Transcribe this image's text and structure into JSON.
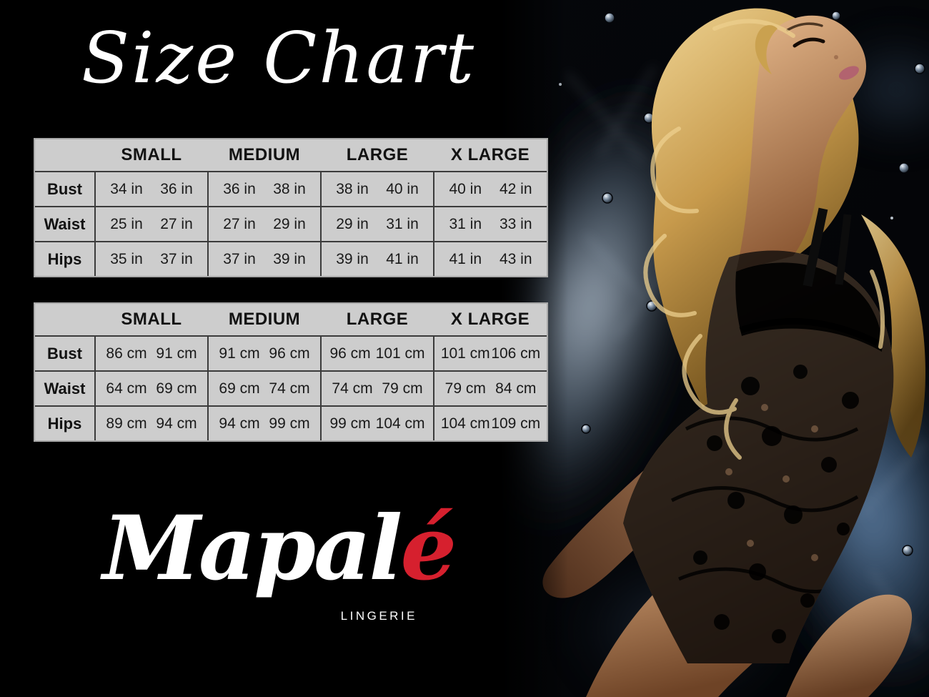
{
  "page": {
    "title": "Size Chart"
  },
  "brand": {
    "script_white": "Mapal",
    "script_accent": "é",
    "tagline": "LINGERIE",
    "accent_color": "#d6202e"
  },
  "colors": {
    "background": "#000000",
    "table_bg": "#cdcdcd",
    "table_grid": "#3b3b3b",
    "table_frame": "#a9a9a9",
    "title_white": "#ffffff"
  },
  "tables": [
    {
      "unit": "inches",
      "columns": [
        "SMALL",
        "MEDIUM",
        "LARGE",
        "X LARGE"
      ],
      "rows": [
        {
          "label": "Bust",
          "ranges": [
            [
              "34 in",
              "36 in"
            ],
            [
              "36 in",
              "38 in"
            ],
            [
              "38 in",
              "40 in"
            ],
            [
              "40 in",
              "42 in"
            ]
          ]
        },
        {
          "label": "Waist",
          "ranges": [
            [
              "25 in",
              "27 in"
            ],
            [
              "27 in",
              "29 in"
            ],
            [
              "29 in",
              "31 in"
            ],
            [
              "31 in",
              "33 in"
            ]
          ]
        },
        {
          "label": "Hips",
          "ranges": [
            [
              "35 in",
              "37 in"
            ],
            [
              "37 in",
              "39 in"
            ],
            [
              "39 in",
              "41 in"
            ],
            [
              "41 in",
              "43 in"
            ]
          ]
        }
      ]
    },
    {
      "unit": "centimeters",
      "columns": [
        "SMALL",
        "MEDIUM",
        "LARGE",
        "X LARGE"
      ],
      "rows": [
        {
          "label": "Bust",
          "ranges": [
            [
              "86 cm",
              "91 cm"
            ],
            [
              "91 cm",
              "96 cm"
            ],
            [
              "96 cm",
              "101 cm"
            ],
            [
              "101 cm",
              "106 cm"
            ]
          ]
        },
        {
          "label": "Waist",
          "ranges": [
            [
              "64 cm",
              "69 cm"
            ],
            [
              "69 cm",
              "74 cm"
            ],
            [
              "74 cm",
              "79 cm"
            ],
            [
              "79 cm",
              "84 cm"
            ]
          ]
        },
        {
          "label": "Hips",
          "ranges": [
            [
              "89 cm",
              "94 cm"
            ],
            [
              "94 cm",
              "99 cm"
            ],
            [
              "99 cm",
              "104 cm"
            ],
            [
              "104 cm",
              "109 cm"
            ]
          ]
        }
      ]
    }
  ]
}
